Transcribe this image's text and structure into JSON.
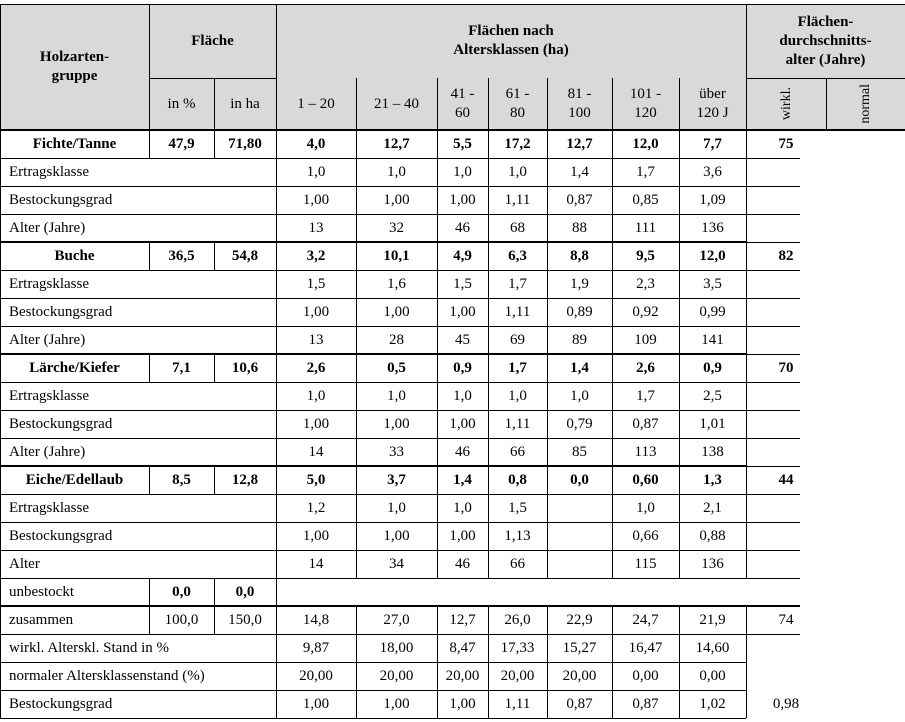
{
  "header": {
    "group": "Holzarten-\ngruppe",
    "area": "Fläche",
    "area_pct": "in %",
    "area_ha": "in ha",
    "age_classes": "Flächen nach\nAltersklassen (ha)",
    "avg_age": "Flächen-\ndurchschnitts-\nalter (Jahre)",
    "avg_real": "wirkl.",
    "avg_normal": "normal",
    "classes": [
      "1 – 20",
      "21 – 40",
      "41 -\n60",
      "61 -\n80",
      "81 -\n100",
      "101 -\n120",
      "über\n120 J"
    ]
  },
  "groups": [
    {
      "name": "Fichte/Tanne",
      "pct": "47,9",
      "ha": "71,80",
      "values": [
        "4,0",
        "12,7",
        "5,5",
        "17,2",
        "12,7",
        "12,0",
        "7,7"
      ],
      "avg": "75",
      "rows": [
        {
          "label": "Ertragsklasse",
          "values": [
            "1,0",
            "1,0",
            "1,0",
            "1,0",
            "1,4",
            "1,7",
            "3,6"
          ]
        },
        {
          "label": "Bestockungsgrad",
          "values": [
            "1,00",
            "1,00",
            "1,00",
            "1,11",
            "0,87",
            "0,85",
            "1,09"
          ]
        },
        {
          "label": "Alter (Jahre)",
          "values": [
            "13",
            "32",
            "46",
            "68",
            "88",
            "111",
            "136"
          ]
        }
      ]
    },
    {
      "name": "Buche",
      "pct": "36,5",
      "ha": "54,8",
      "values": [
        "3,2",
        "10,1",
        "4,9",
        "6,3",
        "8,8",
        "9,5",
        "12,0"
      ],
      "avg": "82",
      "rows": [
        {
          "label": "Ertragsklasse",
          "values": [
            "1,5",
            "1,6",
            "1,5",
            "1,7",
            "1,9",
            "2,3",
            "3,5"
          ]
        },
        {
          "label": "Bestockungsgrad",
          "values": [
            "1,00",
            "1,00",
            "1,00",
            "1,11",
            "0,89",
            "0,92",
            "0,99"
          ]
        },
        {
          "label": "Alter (Jahre)",
          "values": [
            "13",
            "28",
            "45",
            "69",
            "89",
            "109",
            "141"
          ]
        }
      ]
    },
    {
      "name": "Lärche/Kiefer",
      "pct": "7,1",
      "ha": "10,6",
      "values": [
        "2,6",
        "0,5",
        "0,9",
        "1,7",
        "1,4",
        "2,6",
        "0,9"
      ],
      "avg": "70",
      "rows": [
        {
          "label": "Ertragsklasse",
          "values": [
            "1,0",
            "1,0",
            "1,0",
            "1,0",
            "1,0",
            "1,7",
            "2,5"
          ]
        },
        {
          "label": "Bestockungsgrad",
          "values": [
            "1,00",
            "1,00",
            "1,00",
            "1,11",
            "0,79",
            "0,87",
            "1,01"
          ]
        },
        {
          "label": "Alter (Jahre)",
          "values": [
            "14",
            "33",
            "46",
            "66",
            "85",
            "113",
            "138"
          ]
        }
      ]
    },
    {
      "name": "Eiche/Edellaub",
      "pct": "8,5",
      "ha": "12,8",
      "values": [
        "5,0",
        "3,7",
        "1,4",
        "0,8",
        "0,0",
        "0,60",
        "1,3"
      ],
      "avg": "44",
      "rows": [
        {
          "label": "Ertragsklasse",
          "values": [
            "1,2",
            "1,0",
            "1,0",
            "1,5",
            "",
            "1,0",
            "2,1"
          ]
        },
        {
          "label": "Bestockungsgrad",
          "values": [
            "1,00",
            "1,00",
            "1,00",
            "1,13",
            "",
            "0,66",
            "0,88"
          ]
        },
        {
          "label": "Alter",
          "values": [
            "14",
            "34",
            "46",
            "66",
            "",
            "115",
            "136"
          ]
        }
      ]
    }
  ],
  "unstocked": {
    "label": "unbestockt",
    "pct": "0,0",
    "ha": "0,0"
  },
  "totals": {
    "label": "zusammen",
    "pct": "100,0",
    "ha": "150,0",
    "values": [
      "14,8",
      "27,0",
      "12,7",
      "26,0",
      "22,9",
      "24,7",
      "21,9"
    ],
    "avg": "74"
  },
  "real_stand": {
    "label": "wirkl. Alterskl. Stand in %",
    "values": [
      "9,87",
      "18,00",
      "8,47",
      "17,33",
      "15,27",
      "16,47",
      "14,60"
    ]
  },
  "normal_stand": {
    "label": "normaler Altersklassenstand (%)",
    "values": [
      "20,00",
      "20,00",
      "20,00",
      "20,00",
      "20,00",
      "0,00",
      "0,00"
    ]
  },
  "stocking_total": {
    "label": "Bestockungsgrad",
    "values": [
      "1,00",
      "1,00",
      "1,00",
      "1,11",
      "0,87",
      "0,87",
      "1,02"
    ],
    "avg": "0,98"
  }
}
